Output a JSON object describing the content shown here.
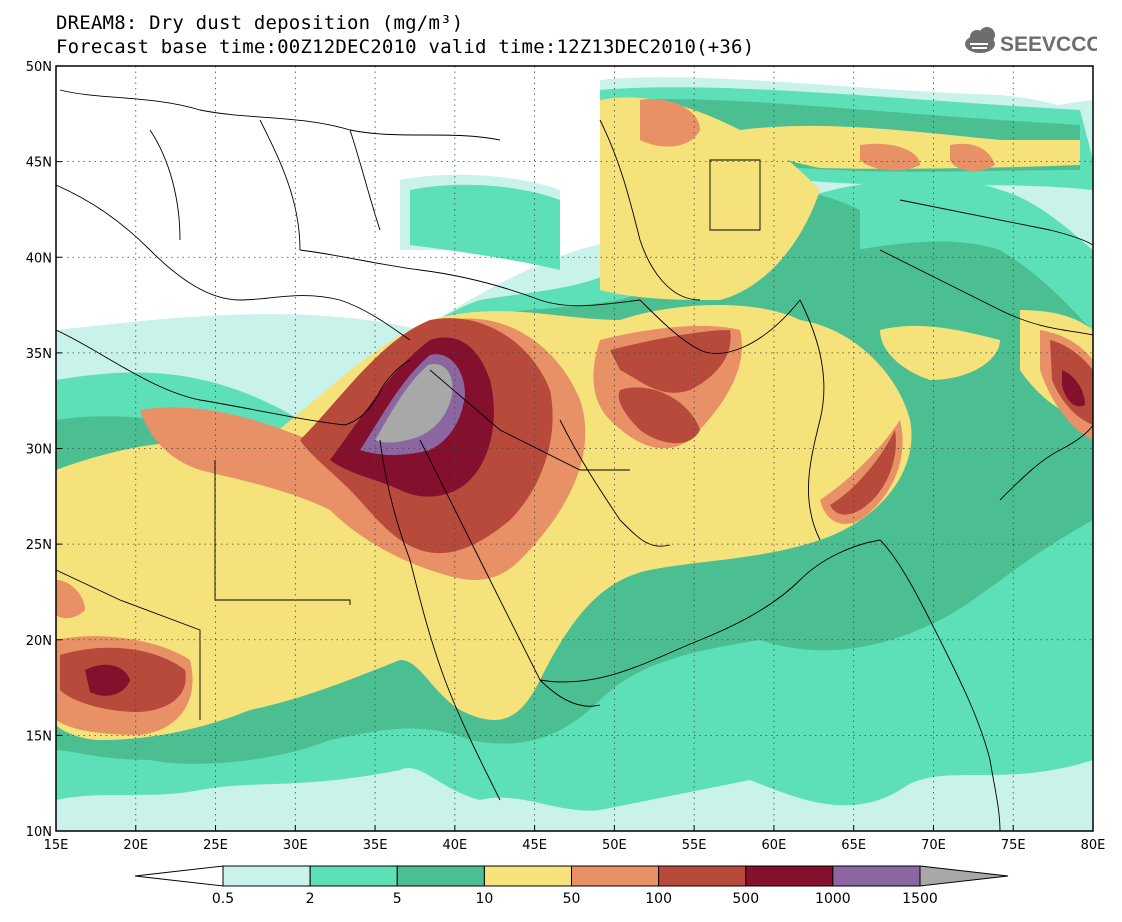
{
  "title_line1": "DREAM8: Dry dust deposition (mg/m³)",
  "title_line2": "Forecast base time:00Z12DEC2010 valid time:12Z13DEC2010(+36)",
  "logo": {
    "text": "SEEVCCC",
    "icon": "cloud-logo-icon",
    "color": "#6d6d6d"
  },
  "map": {
    "lon_range": [
      15,
      80
    ],
    "lat_range": [
      10,
      50
    ],
    "lon_ticks": [
      "15E",
      "20E",
      "25E",
      "30E",
      "35E",
      "40E",
      "45E",
      "50E",
      "55E",
      "60E",
      "65E",
      "70E",
      "75E",
      "80E"
    ],
    "lat_ticks": [
      "50N",
      "45N",
      "40N",
      "35N",
      "30N",
      "25N",
      "20N",
      "15N",
      "10N"
    ],
    "gridlines": "dotted"
  },
  "colorbar": {
    "labels": [
      "0.5",
      "2",
      "5",
      "10",
      "50",
      "100",
      "500",
      "1000",
      "1500"
    ],
    "colors": [
      "#ffffff",
      "#c8f2ea",
      "#5ddfb8",
      "#4cbf92",
      "#f6e27a",
      "#e89066",
      "#b84a3c",
      "#85102e",
      "#8c66a0",
      "#a8a8a8"
    ]
  }
}
